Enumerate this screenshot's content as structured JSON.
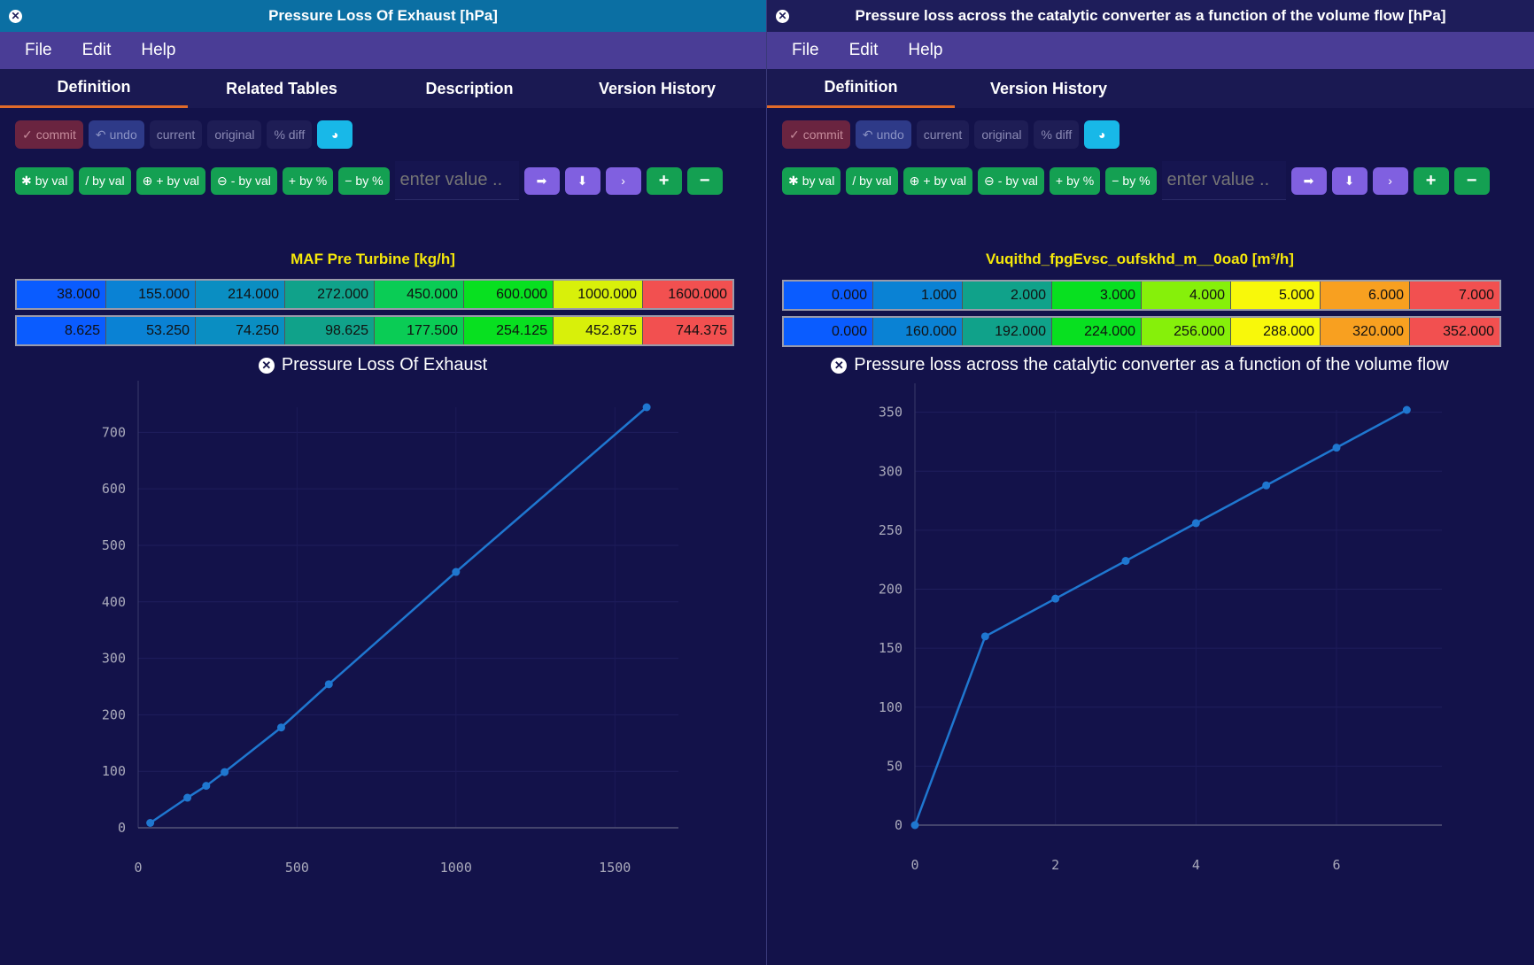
{
  "menu": [
    "File",
    "Edit",
    "Help"
  ],
  "toolbar": {
    "commit": "commit",
    "undo": "undo",
    "current": "current",
    "original": "original",
    "pct_diff": "% diff",
    "mul": "by val",
    "div": "/ by val",
    "add": "+ by val",
    "sub": "- by val",
    "addpct": "by %",
    "subpct": "by %",
    "input_placeholder": "enter value .."
  },
  "left": {
    "title": "Pressure Loss Of Exhaust [hPa]",
    "tabs": [
      "Definition",
      "Related Tables",
      "Description",
      "Version History"
    ],
    "axis_title": "MAF Pre Turbine [kg/h]",
    "row_x": [
      "38.000",
      "155.000",
      "214.000",
      "272.000",
      "450.000",
      "600.000",
      "1000.000",
      "1600.000"
    ],
    "row_y": [
      "8.625",
      "53.250",
      "74.250",
      "98.625",
      "177.500",
      "254.125",
      "452.875",
      "744.375"
    ],
    "colors_x": [
      "#0a5cff",
      "#0a82d4",
      "#0a8ec2",
      "#10a28a",
      "#0acc55",
      "#08e020",
      "#d8f00a",
      "#f25050"
    ],
    "colors_y": [
      "#0a5cff",
      "#0a82d4",
      "#0a8ec2",
      "#10a28a",
      "#0acc55",
      "#08e020",
      "#d8f00a",
      "#f25050"
    ],
    "chart_title": "Pressure Loss Of Exhaust"
  },
  "right": {
    "title": "Pressure loss across the catalytic converter as a function of the volume flow [hPa]",
    "tabs": [
      "Definition",
      "Version History"
    ],
    "axis_title": "Vuqithd_fpgEvsc_oufskhd_m__0oa0 [m³/h]",
    "row_x": [
      "0.000",
      "1.000",
      "2.000",
      "3.000",
      "4.000",
      "5.000",
      "6.000",
      "7.000"
    ],
    "row_y": [
      "0.000",
      "160.000",
      "192.000",
      "224.000",
      "256.000",
      "288.000",
      "320.000",
      "352.000"
    ],
    "colors_x": [
      "#0a5cff",
      "#0a82d4",
      "#10a28a",
      "#08e020",
      "#86f00a",
      "#f8f80a",
      "#f8a020",
      "#f25050"
    ],
    "colors_y": [
      "#0a5cff",
      "#0a82d4",
      "#10a28a",
      "#08e020",
      "#86f00a",
      "#f8f80a",
      "#f8a020",
      "#f25050"
    ],
    "chart_title": "Pressure loss across the catalytic converter as a function of the volume flow"
  },
  "chart_data": [
    {
      "type": "line",
      "title": "Pressure Loss Of Exhaust",
      "x": [
        38,
        155,
        214,
        272,
        450,
        600,
        1000,
        1600
      ],
      "y": [
        8.625,
        53.25,
        74.25,
        98.625,
        177.5,
        254.125,
        452.875,
        744.375
      ],
      "xticks": [
        0,
        500,
        1000,
        1500
      ],
      "yticks": [
        0,
        100,
        200,
        300,
        400,
        500,
        600,
        700
      ],
      "xlim": [
        0,
        1700
      ],
      "ylim": [
        0,
        744.375
      ]
    },
    {
      "type": "line",
      "title": "Pressure loss across the catalytic converter as a function of the volume flow",
      "x": [
        0,
        1,
        2,
        3,
        4,
        5,
        6,
        7
      ],
      "y": [
        0,
        160,
        192,
        224,
        256,
        288,
        320,
        352
      ],
      "xticks": [
        0,
        2,
        4,
        6
      ],
      "yticks": [
        0,
        50,
        100,
        150,
        200,
        250,
        300,
        350
      ],
      "xlim": [
        0,
        7.5
      ],
      "ylim": [
        0,
        352
      ]
    }
  ]
}
